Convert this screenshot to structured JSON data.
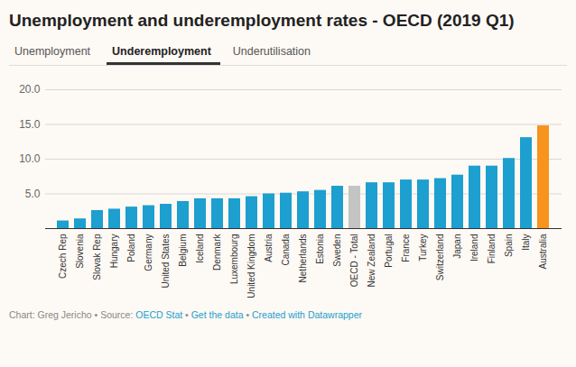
{
  "chart_data": {
    "type": "bar",
    "title": "Unemployment and underemployment rates - OECD (2019 Q1)",
    "tabs": [
      "Unemployment",
      "Underemployment",
      "Underutilisation"
    ],
    "active_tab": "Underemployment",
    "caption": {
      "credit": "Chart: Greg Jericho",
      "source_label": "Source:",
      "source": "OECD Stat",
      "links": [
        "Get the data",
        "Created with Datawrapper"
      ],
      "separator": "•"
    },
    "categories": [
      "Czech Rep",
      "Slovenia",
      "Slovak Rep",
      "Hungary",
      "Poland",
      "Germany",
      "United States",
      "Belgium",
      "Iceland",
      "Denmark",
      "Luxembourg",
      "United Kingdom",
      "Austria",
      "Canada",
      "Netherlands",
      "Estonia",
      "Sweden",
      "OECD - Total",
      "New Zealand",
      "Portugal",
      "France",
      "Turkey",
      "Switzerland",
      "Japan",
      "Ireland",
      "Finland",
      "Spain",
      "Italy",
      "Australia"
    ],
    "values": [
      1.1,
      1.4,
      2.6,
      2.8,
      3.1,
      3.3,
      3.5,
      3.9,
      4.3,
      4.3,
      4.3,
      4.6,
      5.0,
      5.1,
      5.3,
      5.5,
      6.1,
      6.1,
      6.6,
      6.6,
      7.0,
      7.0,
      7.2,
      7.7,
      9.0,
      9.0,
      10.1,
      13.1,
      14.8
    ],
    "colors": [
      "#1d9fcf",
      "#1d9fcf",
      "#1d9fcf",
      "#1d9fcf",
      "#1d9fcf",
      "#1d9fcf",
      "#1d9fcf",
      "#1d9fcf",
      "#1d9fcf",
      "#1d9fcf",
      "#1d9fcf",
      "#1d9fcf",
      "#1d9fcf",
      "#1d9fcf",
      "#1d9fcf",
      "#1d9fcf",
      "#1d9fcf",
      "#c4c4c4",
      "#1d9fcf",
      "#1d9fcf",
      "#1d9fcf",
      "#1d9fcf",
      "#1d9fcf",
      "#1d9fcf",
      "#1d9fcf",
      "#1d9fcf",
      "#1d9fcf",
      "#1d9fcf",
      "#f7941d"
    ],
    "ylim": [
      0,
      20
    ],
    "yticks": [
      {
        "value": 5,
        "label": "5.0"
      },
      {
        "value": 10,
        "label": "10.0"
      },
      {
        "value": 15,
        "label": "15.0"
      },
      {
        "value": 20,
        "label": "20.0"
      }
    ],
    "grid": true
  }
}
